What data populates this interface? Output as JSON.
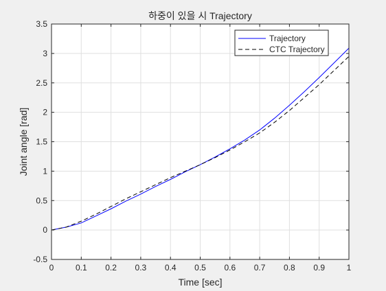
{
  "chart_data": {
    "type": "line",
    "title": "하중이 있을 시 Trajectory",
    "xlabel": "Time [sec]",
    "ylabel": "Joint angle [rad]",
    "xlim": [
      0,
      1
    ],
    "ylim": [
      -0.5,
      3.5
    ],
    "grid": true,
    "legend_placement": "top-right",
    "x_ticks": [
      "0",
      "0.1",
      "0.2",
      "0.3",
      "0.4",
      "0.5",
      "0.6",
      "0.7",
      "0.8",
      "0.9",
      "1"
    ],
    "y_ticks": [
      "-0.5",
      "0",
      "0.5",
      "1",
      "1.5",
      "2",
      "2.5",
      "3",
      "3.5"
    ],
    "series": [
      {
        "name": "Trajectory",
        "color": "#0000ff",
        "style": "solid",
        "x": [
          0,
          0.05,
          0.1,
          0.15,
          0.2,
          0.25,
          0.3,
          0.35,
          0.4,
          0.45,
          0.5,
          0.55,
          0.6,
          0.65,
          0.7,
          0.75,
          0.8,
          0.85,
          0.9,
          0.95,
          1.0
        ],
        "y": [
          0,
          0.05,
          0.12,
          0.24,
          0.36,
          0.49,
          0.61,
          0.74,
          0.86,
          0.99,
          1.11,
          1.24,
          1.38,
          1.53,
          1.7,
          1.9,
          2.12,
          2.35,
          2.59,
          2.84,
          3.09
        ]
      },
      {
        "name": "CTC Trajectory",
        "color": "#000000",
        "style": "dashed",
        "x": [
          0,
          0.05,
          0.1,
          0.15,
          0.2,
          0.25,
          0.3,
          0.35,
          0.4,
          0.45,
          0.5,
          0.55,
          0.6,
          0.65,
          0.7,
          0.75,
          0.8,
          0.85,
          0.9,
          0.95,
          1.0
        ],
        "y": [
          0,
          0.05,
          0.15,
          0.27,
          0.4,
          0.53,
          0.65,
          0.77,
          0.89,
          1.0,
          1.11,
          1.23,
          1.36,
          1.5,
          1.65,
          1.83,
          2.03,
          2.25,
          2.47,
          2.71,
          2.95
        ]
      }
    ]
  }
}
